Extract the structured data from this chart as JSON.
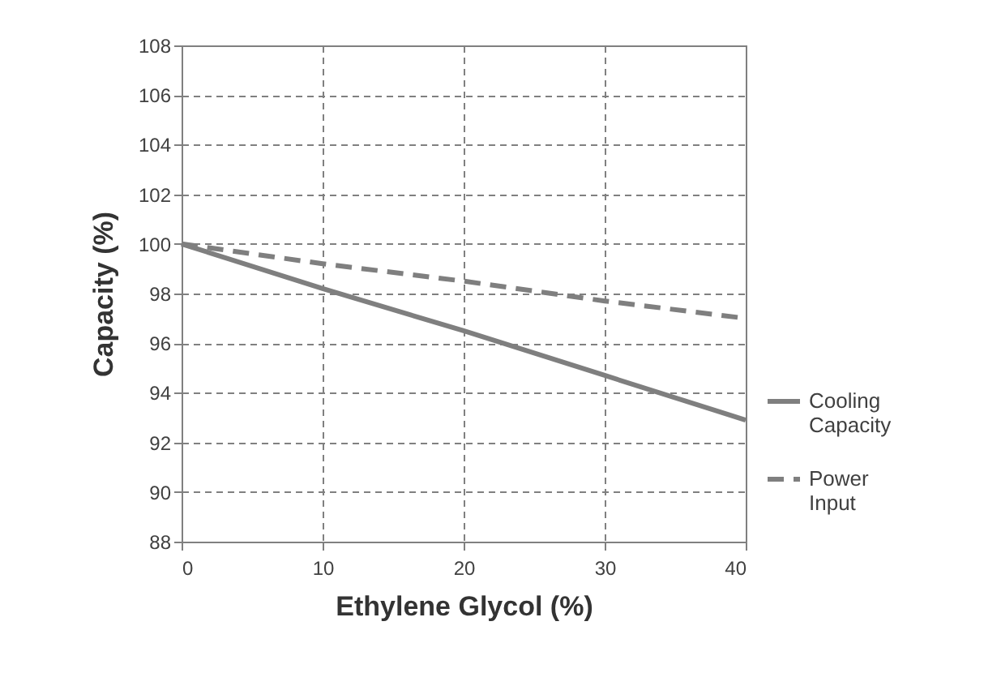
{
  "chart_data": {
    "type": "line",
    "xlabel": "Ethylene Glycol (%)",
    "ylabel": "Capacity (%)",
    "x": [
      0,
      10,
      20,
      30,
      40
    ],
    "series": [
      {
        "name": "Cooling Capacity",
        "color": "#7f7f7f",
        "line_style": "solid",
        "values": [
          100,
          98.2,
          96.5,
          94.7,
          92.9
        ]
      },
      {
        "name": "Power Input",
        "color": "#7f7f7f",
        "line_style": "dashed",
        "values": [
          100,
          99.2,
          98.5,
          97.7,
          97.0
        ]
      }
    ],
    "xlim": [
      0,
      40
    ],
    "xticks": [
      0,
      10,
      20,
      30,
      40
    ],
    "ylim": [
      88,
      108
    ],
    "yticks": [
      88,
      90,
      92,
      94,
      96,
      98,
      100,
      102,
      104,
      106,
      108
    ],
    "grid": true,
    "legend": "right",
    "marker": "none"
  }
}
